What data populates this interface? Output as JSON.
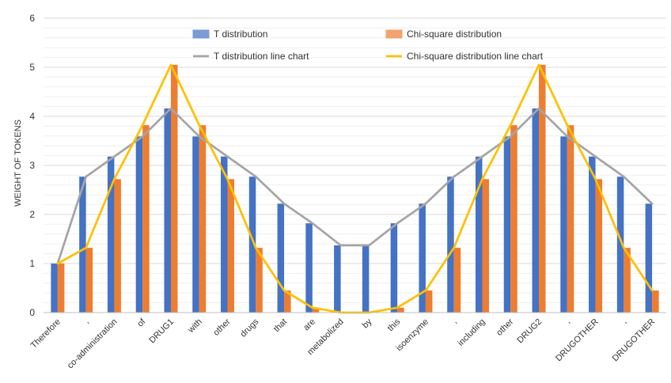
{
  "chart_data": {
    "type": "bar",
    "title": "",
    "xlabel": "",
    "ylabel": "WEIGHT OF TOKENS",
    "ylim": [
      0,
      6
    ],
    "yticks": [
      0,
      1,
      2,
      3,
      4,
      5,
      6
    ],
    "grid": true,
    "legend_position": "top",
    "categories": [
      "Therefore",
      ",",
      "co-administration",
      "of",
      "DRUG1",
      "with",
      "other",
      "drugs",
      "that",
      "are",
      "metabolized",
      "by",
      "this",
      "isoenzyme",
      ",",
      "including",
      "other",
      "DRUG2",
      ",",
      "DRUGOTHER",
      ",",
      "DRUGOTHER"
    ],
    "series": [
      {
        "name": "T distribution",
        "kind": "bar",
        "color": "#4472C4",
        "values": [
          1.0,
          2.77,
          3.18,
          3.59,
          4.16,
          3.59,
          3.18,
          2.77,
          2.22,
          1.82,
          1.37,
          1.37,
          1.82,
          2.22,
          2.77,
          3.18,
          3.59,
          4.16,
          3.59,
          3.18,
          2.77,
          2.22
        ]
      },
      {
        "name": "Chi-square distribution",
        "kind": "bar",
        "color": "#ED7D31",
        "values": [
          1.0,
          1.32,
          2.72,
          3.82,
          5.05,
          3.82,
          2.72,
          1.32,
          0.45,
          0.1,
          0.0,
          0.0,
          0.1,
          0.45,
          1.32,
          2.72,
          3.82,
          5.05,
          3.82,
          2.72,
          1.32,
          0.45
        ]
      },
      {
        "name": "T distribution line chart",
        "kind": "line",
        "color": "#A5A5A5",
        "values": [
          1.0,
          2.77,
          3.18,
          3.59,
          4.16,
          3.59,
          3.18,
          2.77,
          2.22,
          1.82,
          1.37,
          1.37,
          1.82,
          2.22,
          2.77,
          3.18,
          3.59,
          4.16,
          3.59,
          3.18,
          2.77,
          2.22
        ]
      },
      {
        "name": "Chi-square distribution line chart",
        "kind": "line",
        "color": "#FFC000",
        "values": [
          1.0,
          1.32,
          2.72,
          3.82,
          5.05,
          3.82,
          2.72,
          1.32,
          0.45,
          0.1,
          0.0,
          0.0,
          0.1,
          0.45,
          1.32,
          2.72,
          3.82,
          5.05,
          3.82,
          2.72,
          1.32,
          0.45
        ]
      }
    ]
  }
}
